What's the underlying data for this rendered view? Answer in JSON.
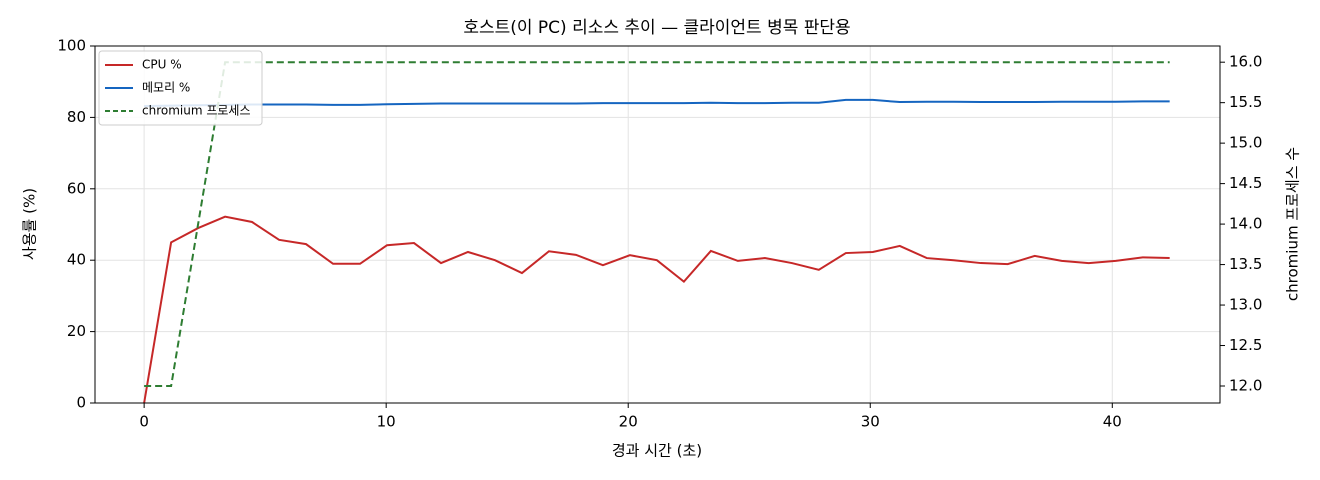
{
  "chart_data": {
    "type": "line",
    "title": "호스트(이 PC) 리소스 추이 — 클라이언트 병목 판단용",
    "x_label": "경과 시간 (초)",
    "y_label": "사용률 (%)",
    "y2_label": "chromium 프로세스 수",
    "x": [
      0,
      1.115,
      2.23,
      3.345,
      4.46,
      5.575,
      6.69,
      7.805,
      8.92,
      10.035,
      11.15,
      12.265,
      13.38,
      14.495,
      15.61,
      16.725,
      17.84,
      18.955,
      20.07,
      21.185,
      22.3,
      23.415,
      24.53,
      25.645,
      26.76,
      27.875,
      28.99,
      30.105,
      31.22,
      32.335,
      33.45,
      34.565,
      35.68,
      36.795,
      37.91,
      39.025,
      40.14,
      41.255,
      42.37
    ],
    "series": [
      {
        "name": "CPU %",
        "color": "#c62828",
        "dash": false,
        "axis": "y",
        "values": [
          0,
          45,
          49,
          52.2,
          50.7,
          45.7,
          44.5,
          39,
          39,
          44.2,
          44.8,
          39.2,
          42.3,
          40,
          36.4,
          42.5,
          41.5,
          38.6,
          41.4,
          40,
          34,
          42.6,
          39.8,
          40.6,
          39.2,
          37.3,
          42,
          42.3,
          44,
          40.6,
          40,
          39.2,
          38.9,
          41.2,
          39.8,
          39.2,
          39.8,
          40.8,
          40.6
        ]
      },
      {
        "name": "메모리 %",
        "color": "#1565c0",
        "dash": false,
        "axis": "y",
        "values": [
          83.2,
          83.3,
          83.4,
          83.5,
          83.6,
          83.6,
          83.6,
          83.5,
          83.5,
          83.7,
          83.8,
          83.9,
          83.9,
          83.9,
          83.9,
          83.9,
          83.9,
          84.0,
          84.0,
          84.0,
          84.0,
          84.1,
          84.0,
          84.0,
          84.1,
          84.1,
          84.9,
          84.9,
          84.3,
          84.4,
          84.4,
          84.3,
          84.3,
          84.3,
          84.4,
          84.4,
          84.4,
          84.5,
          84.5
        ]
      },
      {
        "name": "chromium 프로세스",
        "color": "#2e7d32",
        "dash": true,
        "axis": "y2",
        "values": [
          12,
          12,
          14,
          16,
          16,
          16,
          16,
          16,
          16,
          16,
          16,
          16,
          16,
          16,
          16,
          16,
          16,
          16,
          16,
          16,
          16,
          16,
          16,
          16,
          16,
          16,
          16,
          16,
          16,
          16,
          16,
          16,
          16,
          16,
          16,
          16,
          16,
          16,
          16
        ]
      }
    ],
    "xlim": [
      -2.03,
      44.45
    ],
    "xticks": [
      0,
      10,
      20,
      30,
      40
    ],
    "ylim": [
      0,
      100
    ],
    "yticks": [
      0,
      20,
      40,
      60,
      80,
      100
    ],
    "y2lim": [
      11.79,
      16.2
    ],
    "y2ticks": [
      {
        "value": 12,
        "label": "12.0"
      },
      12.5,
      {
        "value": 13,
        "label": "13.0"
      },
      13.5,
      {
        "value": 14,
        "label": "14.0"
      },
      14.5,
      {
        "value": 15,
        "label": "15.0"
      },
      15.5,
      {
        "value": 16,
        "label": "16.0"
      }
    ],
    "grid": true,
    "legend": "upper-left"
  }
}
